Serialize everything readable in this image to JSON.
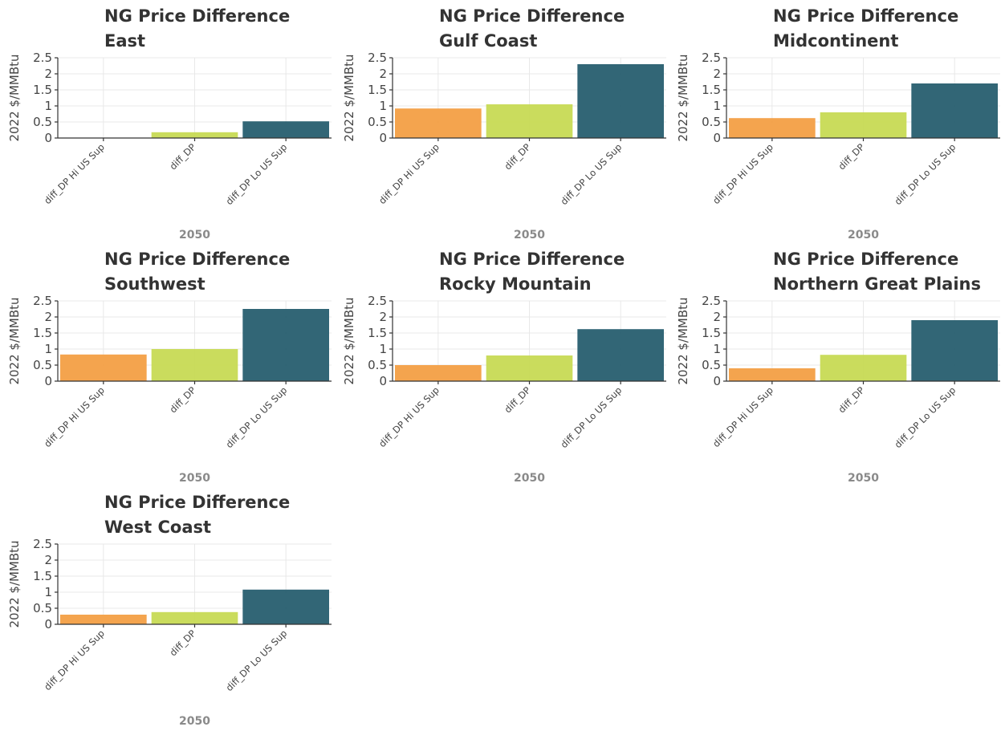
{
  "chart_data": [
    {
      "type": "bar",
      "title": "NG Price Difference",
      "subtitle": "East",
      "ylabel": "2022 $/MMBtu",
      "xlabel": "2050",
      "ylim": [
        0,
        2.5
      ],
      "yticks": [
        "0",
        "0.5",
        "1",
        "1.5",
        "2",
        "2.5"
      ],
      "categories": [
        "diff_DP Hi US Sup",
        "diff_DP",
        "diff_DP Lo US Sup"
      ],
      "values": [
        0.0,
        0.18,
        0.52
      ],
      "colors": [
        "#f39c3f",
        "#c5d94f",
        "#21596a"
      ],
      "grid": true
    },
    {
      "type": "bar",
      "title": "NG Price Difference",
      "subtitle": "Gulf Coast",
      "ylabel": "2022 $/MMBtu",
      "xlabel": "2050",
      "ylim": [
        0,
        2.5
      ],
      "yticks": [
        "0",
        "0.5",
        "1",
        "1.5",
        "2",
        "2.5"
      ],
      "categories": [
        "diff_DP Hi US Sup",
        "diff_DP",
        "diff_DP Lo US Sup"
      ],
      "values": [
        0.92,
        1.05,
        2.3
      ],
      "colors": [
        "#f39c3f",
        "#c5d94f",
        "#21596a"
      ],
      "grid": true
    },
    {
      "type": "bar",
      "title": "NG Price Difference",
      "subtitle": "Midcontinent",
      "ylabel": "2022 $/MMBtu",
      "xlabel": "2050",
      "ylim": [
        0,
        2.5
      ],
      "yticks": [
        "0",
        "0.5",
        "1",
        "1.5",
        "2",
        "2.5"
      ],
      "categories": [
        "diff_DP Hi US Sup",
        "diff_DP",
        "diff_DP Lo US Sup"
      ],
      "values": [
        0.62,
        0.8,
        1.7
      ],
      "colors": [
        "#f39c3f",
        "#c5d94f",
        "#21596a"
      ],
      "grid": true
    },
    {
      "type": "bar",
      "title": "NG Price Difference",
      "subtitle": "Southwest",
      "ylabel": "2022 $/MMBtu",
      "xlabel": "2050",
      "ylim": [
        0,
        2.5
      ],
      "yticks": [
        "0",
        "0.5",
        "1",
        "1.5",
        "2",
        "2.5"
      ],
      "categories": [
        "diff_DP Hi US Sup",
        "diff_DP",
        "diff_DP Lo US Sup"
      ],
      "values": [
        0.83,
        1.0,
        2.25
      ],
      "colors": [
        "#f39c3f",
        "#c5d94f",
        "#21596a"
      ],
      "grid": true
    },
    {
      "type": "bar",
      "title": "NG Price Difference",
      "subtitle": "Rocky Mountain",
      "ylabel": "2022 $/MMBtu",
      "xlabel": "2050",
      "ylim": [
        0,
        2.5
      ],
      "yticks": [
        "0",
        "0.5",
        "1",
        "1.5",
        "2",
        "2.5"
      ],
      "categories": [
        "diff_DP Hi US Sup",
        "diff_DP",
        "diff_DP Lo US Sup"
      ],
      "values": [
        0.5,
        0.8,
        1.62
      ],
      "colors": [
        "#f39c3f",
        "#c5d94f",
        "#21596a"
      ],
      "grid": true
    },
    {
      "type": "bar",
      "title": "NG Price Difference",
      "subtitle": "Northern Great Plains",
      "ylabel": "2022 $/MMBtu",
      "xlabel": "2050",
      "ylim": [
        0,
        2.5
      ],
      "yticks": [
        "0",
        "0.5",
        "1",
        "1.5",
        "2",
        "2.5"
      ],
      "categories": [
        "diff_DP Hi US Sup",
        "diff_DP",
        "diff_DP Lo US Sup"
      ],
      "values": [
        0.4,
        0.82,
        1.9
      ],
      "colors": [
        "#f39c3f",
        "#c5d94f",
        "#21596a"
      ],
      "grid": true
    },
    {
      "type": "bar",
      "title": "NG Price Difference",
      "subtitle": "West Coast",
      "ylabel": "2022 $/MMBtu",
      "xlabel": "2050",
      "ylim": [
        0,
        2.5
      ],
      "yticks": [
        "0",
        "0.5",
        "1",
        "1.5",
        "2",
        "2.5"
      ],
      "categories": [
        "diff_DP Hi US Sup",
        "diff_DP",
        "diff_DP Lo US Sup"
      ],
      "values": [
        0.3,
        0.38,
        1.08
      ],
      "colors": [
        "#f39c3f",
        "#c5d94f",
        "#21596a"
      ],
      "grid": true
    }
  ]
}
